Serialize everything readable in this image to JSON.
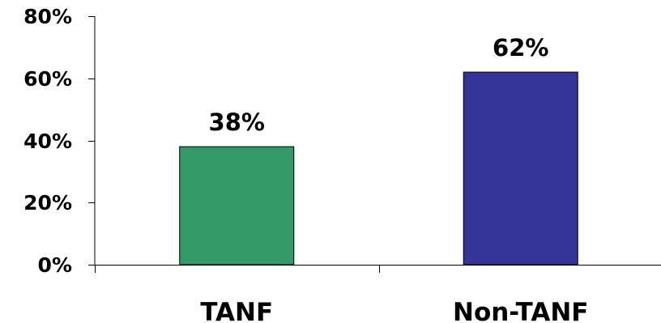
{
  "chart_data": {
    "type": "bar",
    "title": "",
    "xlabel": "",
    "ylabel": "",
    "categories": [
      "TANF",
      "Non-TANF"
    ],
    "values": [
      38,
      62
    ],
    "data_labels": [
      "38%",
      "62%"
    ],
    "ylim": [
      0,
      80
    ],
    "y_ticks": [
      0,
      20,
      40,
      60,
      80
    ],
    "y_tick_labels": [
      "0%",
      "20%",
      "40%",
      "60%",
      "80%"
    ],
    "bar_colors": [
      "#339966",
      "#333399"
    ],
    "grid": false,
    "legend": "none"
  }
}
